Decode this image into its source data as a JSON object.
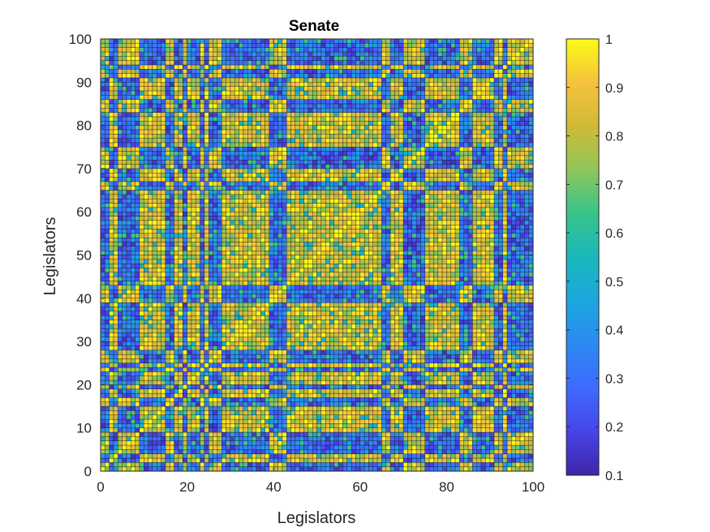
{
  "chart_data": {
    "type": "heatmap",
    "title": "Senate",
    "xlabel": "Legislators",
    "ylabel": "Legislators",
    "xlim": [
      0,
      100
    ],
    "ylim": [
      0,
      100
    ],
    "x_ticks": [
      0,
      20,
      40,
      60,
      80,
      100
    ],
    "y_ticks": [
      0,
      10,
      20,
      30,
      40,
      50,
      60,
      70,
      80,
      90,
      100
    ],
    "x_tick_labels": [
      "0",
      "20",
      "40",
      "60",
      "80",
      "100"
    ],
    "y_tick_labels": [
      "0",
      "10",
      "20",
      "30",
      "40",
      "50",
      "60",
      "70",
      "80",
      "90",
      "100"
    ],
    "matrix_size": 100,
    "diagonal_value": 1,
    "group_a_legislators": [
      3,
      4,
      10,
      11,
      12,
      13,
      14,
      15,
      18,
      19,
      21,
      22,
      23,
      25,
      29,
      30,
      31,
      32,
      33,
      34,
      35,
      36,
      37,
      38,
      39,
      44,
      45,
      46,
      47,
      48,
      49,
      50,
      51,
      52,
      53,
      54,
      55,
      56,
      57,
      58,
      59,
      60,
      61,
      62,
      63,
      64,
      65,
      68,
      69,
      70,
      76,
      77,
      78,
      79,
      80,
      81,
      82,
      83,
      87,
      88,
      89,
      90,
      91,
      94
    ],
    "within_group_agreement": 0.85,
    "between_group_agreement": 0.3,
    "colorbar": {
      "min": 0.1,
      "max": 1,
      "ticks": [
        0.1,
        0.2,
        0.3,
        0.4,
        0.5,
        0.6,
        0.7,
        0.8,
        0.9,
        1
      ],
      "tick_labels": [
        "0.1",
        "0.2",
        "0.3",
        "0.4",
        "0.5",
        "0.6",
        "0.7",
        "0.8",
        "0.9",
        "1"
      ],
      "colormap": "parula",
      "colormap_stops": [
        "#3e26a8",
        "#4744e8",
        "#3e6afe",
        "#2c89f2",
        "#1ba7dd",
        "#19b8ba",
        "#38c38b",
        "#8ec65a",
        "#d0ba37",
        "#f6c23c",
        "#f9fb15"
      ]
    },
    "grid": false,
    "legend": "none"
  }
}
